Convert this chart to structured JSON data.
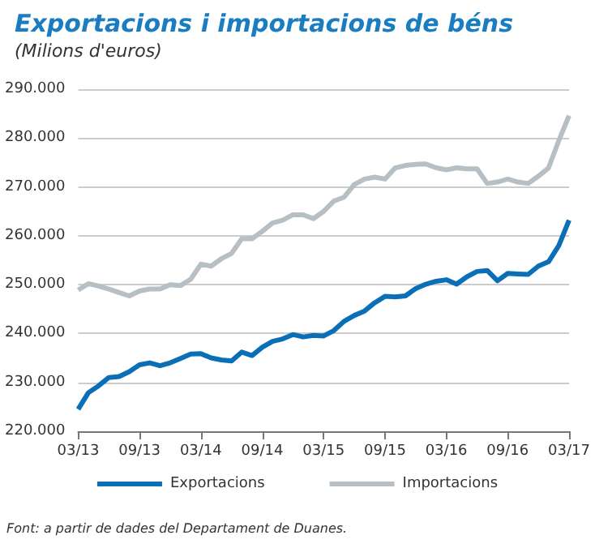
{
  "chart_data": {
    "type": "line",
    "title": "Exportacions i importacions de béns",
    "subtitle": "(Milions d'euros)",
    "categories": [
      "03/13",
      null,
      null,
      null,
      null,
      null,
      "09/13",
      null,
      null,
      null,
      null,
      null,
      "03/14",
      null,
      null,
      null,
      null,
      null,
      "09/14",
      null,
      null,
      null,
      null,
      null,
      "03/15",
      null,
      null,
      null,
      null,
      null,
      "09/15",
      null,
      null,
      null,
      null,
      null,
      "03/16",
      null,
      null,
      null,
      null,
      null,
      "09/16",
      null,
      null,
      null,
      null,
      null,
      "03/17"
    ],
    "series": [
      {
        "name": "Exportacions",
        "color": "#0a6fb7",
        "values": [
          224500,
          227900,
          229300,
          231000,
          231200,
          232200,
          233600,
          234000,
          233400,
          234000,
          234900,
          235800,
          235900,
          235000,
          234600,
          234400,
          236200,
          235500,
          237200,
          238400,
          238900,
          239800,
          239300,
          239600,
          239500,
          240600,
          242500,
          243700,
          244600,
          246300,
          247600,
          247500,
          247700,
          249200,
          250100,
          250700,
          251000,
          250100,
          251600,
          252700,
          252900,
          250800,
          252300,
          252200,
          252100,
          253800,
          254700,
          258000,
          263200
        ]
      },
      {
        "name": "Importacions",
        "color": "#b5bfc4",
        "values": [
          248900,
          250200,
          249700,
          249100,
          248400,
          247700,
          248700,
          249100,
          249100,
          250000,
          249800,
          251100,
          254200,
          253800,
          255300,
          256400,
          259400,
          259400,
          260900,
          262600,
          263200,
          264300,
          264300,
          263500,
          265000,
          267100,
          267900,
          270500,
          271600,
          272000,
          271600,
          273900,
          274400,
          274600,
          274700,
          273900,
          273500,
          273900,
          273700,
          273700,
          270700,
          271000,
          271600,
          271000,
          270700,
          272200,
          273900,
          279500,
          284600
        ]
      }
    ],
    "ylim": [
      220000,
      290000
    ],
    "yticks": [
      {
        "value": 220000,
        "label": "220.000"
      },
      {
        "value": 230000,
        "label": "230.000"
      },
      {
        "value": 240000,
        "label": "240.000"
      },
      {
        "value": 250000,
        "label": "250.000"
      },
      {
        "value": 260000,
        "label": "260.000"
      },
      {
        "value": 270000,
        "label": "270.000"
      },
      {
        "value": 280000,
        "label": "280.000"
      },
      {
        "value": 290000,
        "label": "290.000"
      }
    ],
    "grid": "y",
    "legend": "bottom",
    "annotations": [
      "Font: a partir de dades del Departament de Duanes."
    ]
  }
}
